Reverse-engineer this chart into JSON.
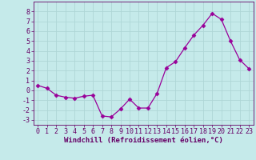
{
  "x": [
    0,
    1,
    2,
    3,
    4,
    5,
    6,
    7,
    8,
    9,
    10,
    11,
    12,
    13,
    14,
    15,
    16,
    17,
    18,
    19,
    20,
    21,
    22,
    23
  ],
  "y": [
    0.5,
    0.2,
    -0.5,
    -0.7,
    -0.8,
    -0.6,
    -0.5,
    -2.6,
    -2.7,
    -1.9,
    -0.9,
    -1.8,
    -1.8,
    -0.3,
    2.3,
    2.9,
    4.3,
    5.6,
    6.6,
    7.8,
    7.2,
    5.0,
    3.1,
    2.2
  ],
  "line_color": "#990099",
  "marker": "D",
  "marker_size": 2.5,
  "bg_color": "#c5eaea",
  "grid_color": "#aed6d6",
  "xlabel": "Windchill (Refroidissement éolien,°C)",
  "xlabel_fontsize": 6.5,
  "tick_fontsize": 6.0,
  "ylim": [
    -3.5,
    9.0
  ],
  "xlim": [
    -0.5,
    23.5
  ],
  "yticks": [
    -3,
    -2,
    -1,
    0,
    1,
    2,
    3,
    4,
    5,
    6,
    7,
    8
  ],
  "xticks": [
    0,
    1,
    2,
    3,
    4,
    5,
    6,
    7,
    8,
    9,
    10,
    11,
    12,
    13,
    14,
    15,
    16,
    17,
    18,
    19,
    20,
    21,
    22,
    23
  ]
}
